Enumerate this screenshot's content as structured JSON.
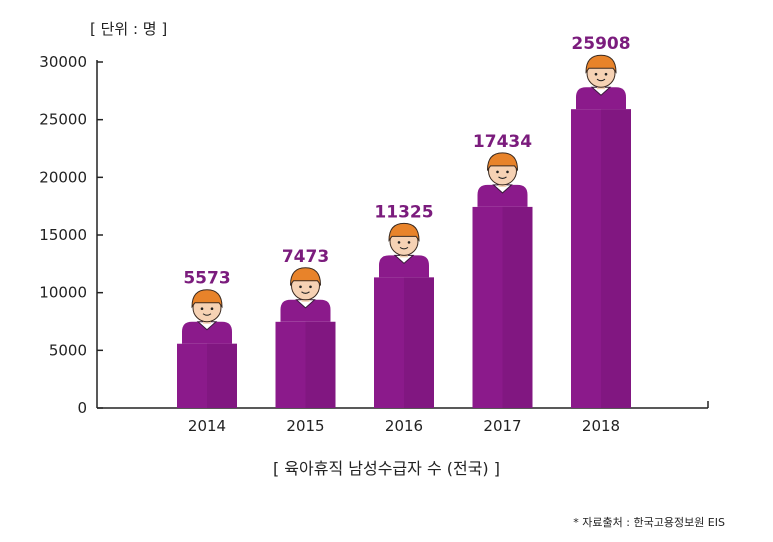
{
  "chart_data": {
    "type": "bar",
    "title": "",
    "unit_label": "[ 단위 : 명 ]",
    "xlabel": "[ 육아휴직 남성수급자 수 (전국) ]",
    "ylabel": "",
    "categories": [
      "2014",
      "2015",
      "2016",
      "2017",
      "2018"
    ],
    "values": [
      5573,
      7473,
      11325,
      17434,
      25908
    ],
    "data_labels": [
      "5573",
      "7473",
      "11325",
      "17434",
      "25908"
    ],
    "ylim": [
      0,
      30000
    ],
    "yticks": [
      0,
      5000,
      10000,
      15000,
      20000,
      25000,
      30000
    ],
    "ytick_labels": [
      "0",
      "5000",
      "10000",
      "15000",
      "20000",
      "25000",
      "30000"
    ],
    "grid": false,
    "bar_color": "#8b1a8b",
    "bar_shade_color": "#7a157a",
    "label_color": "#7b1c7d",
    "bar_top_icon": "person-head-icon"
  },
  "source_note": "* 자료출처 : 한국고용정보원 EIS"
}
